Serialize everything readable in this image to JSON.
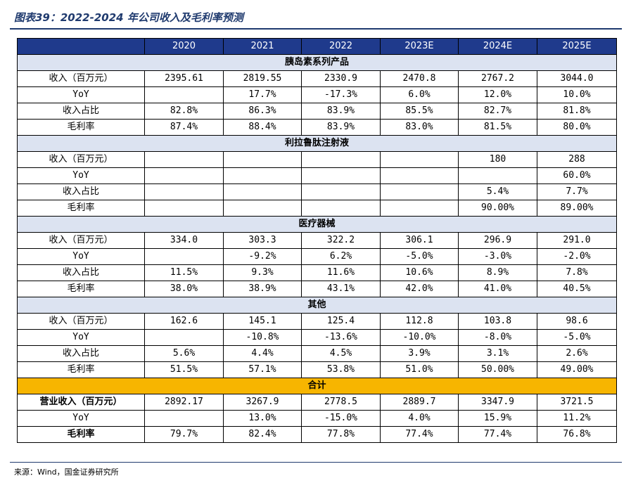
{
  "title": "图表39：2022-2024 年公司收入及毛利率预测",
  "source": "来源：Wind，国金证券研究所",
  "header": [
    "",
    "2020",
    "2021",
    "2022",
    "2023E",
    "2024E",
    "2025E"
  ],
  "sections": [
    {
      "name": "胰岛素系列产品",
      "rows": [
        {
          "label": "收入（百万元）",
          "values": [
            "2395.61",
            "2819.55",
            "2330.9",
            "2470.8",
            "2767.2",
            "3044.0"
          ]
        },
        {
          "label": "YoY",
          "values": [
            "",
            "17.7%",
            "-17.3%",
            "6.0%",
            "12.0%",
            "10.0%"
          ]
        },
        {
          "label": "收入占比",
          "values": [
            "82.8%",
            "86.3%",
            "83.9%",
            "85.5%",
            "82.7%",
            "81.8%"
          ]
        },
        {
          "label": "毛利率",
          "values": [
            "87.4%",
            "88.4%",
            "83.9%",
            "83.0%",
            "81.5%",
            "80.0%"
          ]
        }
      ]
    },
    {
      "name": "利拉鲁肽注射液",
      "rows": [
        {
          "label": "收入（百万元）",
          "values": [
            "",
            "",
            "",
            "",
            "180",
            "288"
          ]
        },
        {
          "label": "YoY",
          "values": [
            "",
            "",
            "",
            "",
            "",
            "60.0%"
          ]
        },
        {
          "label": "收入占比",
          "values": [
            "",
            "",
            "",
            "",
            "5.4%",
            "7.7%"
          ]
        },
        {
          "label": "毛利率",
          "values": [
            "",
            "",
            "",
            "",
            "90.00%",
            "89.00%"
          ]
        }
      ]
    },
    {
      "name": "医疗器械",
      "rows": [
        {
          "label": "收入（百万元）",
          "values": [
            "334.0",
            "303.3",
            "322.2",
            "306.1",
            "296.9",
            "291.0"
          ]
        },
        {
          "label": "YoY",
          "values": [
            "",
            "-9.2%",
            "6.2%",
            "-5.0%",
            "-3.0%",
            "-2.0%"
          ]
        },
        {
          "label": "收入占比",
          "values": [
            "11.5%",
            "9.3%",
            "11.6%",
            "10.6%",
            "8.9%",
            "7.8%"
          ]
        },
        {
          "label": "毛利率",
          "values": [
            "38.0%",
            "38.9%",
            "43.1%",
            "42.0%",
            "41.0%",
            "40.5%"
          ]
        }
      ]
    },
    {
      "name": "其他",
      "rows": [
        {
          "label": "收入（百万元）",
          "values": [
            "162.6",
            "145.1",
            "125.4",
            "112.8",
            "103.8",
            "98.6"
          ]
        },
        {
          "label": "YoY",
          "values": [
            "",
            "-10.8%",
            "-13.6%",
            "-10.0%",
            "-8.0%",
            "-5.0%"
          ]
        },
        {
          "label": "收入占比",
          "values": [
            "5.6%",
            "4.4%",
            "4.5%",
            "3.9%",
            "3.1%",
            "2.6%"
          ]
        },
        {
          "label": "毛利率",
          "values": [
            "51.5%",
            "57.1%",
            "53.8%",
            "51.0%",
            "50.00%",
            "49.00%"
          ]
        }
      ]
    }
  ],
  "total": {
    "name": "合计",
    "rows": [
      {
        "label": "营业收入（百万元）",
        "bold": true,
        "values": [
          "2892.17",
          "3267.9",
          "2778.5",
          "2889.7",
          "3347.9",
          "3721.5"
        ]
      },
      {
        "label": "YoY",
        "bold": false,
        "values": [
          "",
          "13.0%",
          "-15.0%",
          "4.0%",
          "15.9%",
          "11.2%"
        ]
      },
      {
        "label": "毛利率",
        "bold": true,
        "values": [
          "79.7%",
          "82.4%",
          "77.8%",
          "77.4%",
          "77.4%",
          "76.8%"
        ]
      }
    ]
  }
}
